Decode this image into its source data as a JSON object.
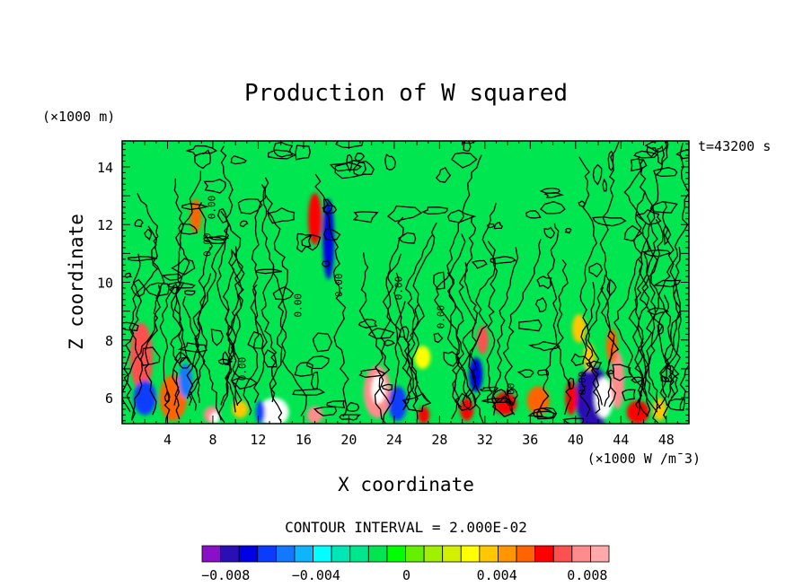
{
  "chart_data": {
    "type": "heatmap",
    "title": "Production of W squared",
    "xlabel": "X coordinate",
    "ylabel": "Z coordinate",
    "x_unit": "(×1000 W /m¯3)",
    "y_unit": "(×1000 m)",
    "time_label": "t=43200 s",
    "contour_interval_label": "CONTOUR INTERVAL = 2.000E-02",
    "xlim": [
      0,
      50
    ],
    "ylim": [
      5.1,
      14.9
    ],
    "x_ticks": [
      4,
      8,
      12,
      16,
      20,
      24,
      28,
      32,
      36,
      40,
      44,
      48
    ],
    "y_ticks": [
      6,
      8,
      10,
      12,
      14
    ],
    "colorbar": {
      "colors": [
        "#8a10c8",
        "#2a10b4",
        "#0000e6",
        "#0a3cff",
        "#1478ff",
        "#0fb4ff",
        "#00ffff",
        "#00e6b4",
        "#00e68c",
        "#00e650",
        "#00ff00",
        "#64f000",
        "#a0f000",
        "#d2f000",
        "#ffff00",
        "#ffc800",
        "#ff9600",
        "#ff6400",
        "#ff0000",
        "#ff5050",
        "#ff8c8c",
        "#ffaaaa"
      ],
      "tick_labels": [
        "−0.008",
        "−0.004",
        "0",
        "0.004",
        "0.008"
      ],
      "tick_values": [
        -0.008,
        -0.004,
        0,
        0.004,
        0.008
      ]
    },
    "background_color": "#00e650",
    "anomalies": [
      {
        "x": 22.5,
        "z": 6.2,
        "rx": 1.2,
        "rz": 0.9,
        "value": 0.008
      },
      {
        "x": 22.6,
        "z": 6.3,
        "rx": 0.6,
        "rz": 0.5,
        "value": 0.02
      },
      {
        "x": 24.3,
        "z": 5.8,
        "rx": 0.8,
        "rz": 0.6,
        "value": -0.006
      },
      {
        "x": 31.8,
        "z": 8.0,
        "rx": 0.5,
        "rz": 0.5,
        "value": 0.007
      },
      {
        "x": 31.2,
        "z": 6.8,
        "rx": 0.6,
        "rz": 0.6,
        "value": -0.007
      },
      {
        "x": 41.5,
        "z": 6.0,
        "rx": 1.5,
        "rz": 1.1,
        "value": -0.008
      },
      {
        "x": 42.5,
        "z": 6.0,
        "rx": 0.8,
        "rz": 0.7,
        "value": 0.02
      },
      {
        "x": 43.7,
        "z": 6.6,
        "rx": 0.6,
        "rz": 1.0,
        "value": 0.008
      },
      {
        "x": 39.6,
        "z": 6.0,
        "rx": 0.5,
        "rz": 0.6,
        "value": 0.006
      },
      {
        "x": 40.3,
        "z": 8.4,
        "rx": 0.6,
        "rz": 0.5,
        "value": 0.004
      },
      {
        "x": 1.7,
        "z": 7.4,
        "rx": 1.0,
        "rz": 1.2,
        "value": 0.007
      },
      {
        "x": 2.0,
        "z": 6.0,
        "rx": 1.0,
        "rz": 0.6,
        "value": -0.006
      },
      {
        "x": 4.5,
        "z": 6.0,
        "rx": 1.2,
        "rz": 0.8,
        "value": 0.005
      },
      {
        "x": 5.6,
        "z": 6.6,
        "rx": 0.6,
        "rz": 0.6,
        "value": -0.005
      },
      {
        "x": 7.9,
        "z": 5.4,
        "rx": 0.7,
        "rz": 0.3,
        "value": 0.008
      },
      {
        "x": 8.2,
        "z": 5.3,
        "rx": 0.4,
        "rz": 0.2,
        "value": 0.02
      },
      {
        "x": 13.4,
        "z": 5.5,
        "rx": 1.3,
        "rz": 0.5,
        "value": 0.02
      },
      {
        "x": 12.2,
        "z": 5.5,
        "rx": 0.4,
        "rz": 0.4,
        "value": -0.006
      },
      {
        "x": 17.0,
        "z": 5.4,
        "rx": 0.7,
        "rz": 0.3,
        "value": 0.008
      },
      {
        "x": 18.2,
        "z": 11.5,
        "rx": 0.5,
        "rz": 1.4,
        "value": -0.007
      },
      {
        "x": 17.0,
        "z": 12.2,
        "rx": 0.6,
        "rz": 0.9,
        "value": 0.006
      },
      {
        "x": 6.5,
        "z": 12.3,
        "rx": 0.5,
        "rz": 0.6,
        "value": 0.005
      },
      {
        "x": 26.5,
        "z": 7.4,
        "rx": 0.7,
        "rz": 0.4,
        "value": 0.003
      },
      {
        "x": 30.4,
        "z": 5.6,
        "rx": 0.6,
        "rz": 0.4,
        "value": 0.006
      },
      {
        "x": 33.8,
        "z": 5.8,
        "rx": 1.0,
        "rz": 0.4,
        "value": 0.006
      },
      {
        "x": 36.7,
        "z": 5.9,
        "rx": 1.0,
        "rz": 0.5,
        "value": 0.005
      },
      {
        "x": 45.5,
        "z": 5.5,
        "rx": 1.0,
        "rz": 0.4,
        "value": 0.006
      },
      {
        "x": 47.4,
        "z": 5.6,
        "rx": 0.6,
        "rz": 0.4,
        "value": 0.004
      },
      {
        "x": 41.2,
        "z": 7.4,
        "rx": 0.5,
        "rz": 0.5,
        "value": 0.004
      },
      {
        "x": 43.2,
        "z": 7.8,
        "rx": 0.5,
        "rz": 0.6,
        "value": 0.005
      },
      {
        "x": 26.6,
        "z": 5.4,
        "rx": 0.5,
        "rz": 0.3,
        "value": 0.006
      },
      {
        "x": 10.4,
        "z": 5.6,
        "rx": 0.7,
        "rz": 0.3,
        "value": 0.004
      }
    ],
    "contour_label": "0.00",
    "contour_label_points": [
      {
        "x": 8.2,
        "z": 12.6
      },
      {
        "x": 7.8,
        "z": 11.3
      },
      {
        "x": 15.8,
        "z": 9.2
      },
      {
        "x": 19.4,
        "z": 9.9
      },
      {
        "x": 24.7,
        "z": 9.8
      },
      {
        "x": 28.4,
        "z": 8.8
      },
      {
        "x": 10.9,
        "z": 7.0
      },
      {
        "x": 34.6,
        "z": 6.1
      },
      {
        "x": 40.9,
        "z": 6.5
      }
    ]
  }
}
